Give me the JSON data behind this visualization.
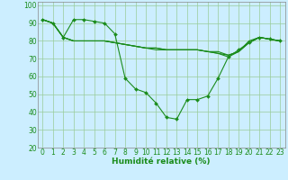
{
  "background_color": "#cceeff",
  "grid_color": "#99cc99",
  "line_color": "#1a8c1a",
  "xlabel": "Humidité relative (%)",
  "xlabel_fontsize": 6.5,
  "tick_fontsize": 5.5,
  "ylim": [
    20,
    102
  ],
  "yticks": [
    20,
    30,
    40,
    50,
    60,
    70,
    80,
    90,
    100
  ],
  "xlim": [
    -0.5,
    23.5
  ],
  "xticks": [
    0,
    1,
    2,
    3,
    4,
    5,
    6,
    7,
    8,
    9,
    10,
    11,
    12,
    13,
    14,
    15,
    16,
    17,
    18,
    19,
    20,
    21,
    22,
    23
  ],
  "series1": [
    92,
    90,
    82,
    92,
    92,
    91,
    90,
    84,
    59,
    53,
    51,
    45,
    37,
    36,
    47,
    47,
    49,
    59,
    71,
    75,
    79,
    82,
    81,
    80
  ],
  "series2": [
    92,
    90,
    82,
    80,
    80,
    80,
    80,
    79,
    78,
    77,
    76,
    76,
    75,
    75,
    75,
    75,
    74,
    73,
    72,
    74,
    80,
    82,
    81,
    80
  ],
  "series3": [
    92,
    90,
    82,
    80,
    80,
    80,
    80,
    79,
    78,
    77,
    76,
    76,
    75,
    75,
    75,
    75,
    74,
    74,
    72,
    74,
    79,
    82,
    81,
    80
  ],
  "series4": [
    92,
    90,
    82,
    80,
    80,
    80,
    80,
    79,
    78,
    77,
    76,
    75,
    75,
    75,
    75,
    75,
    74,
    73,
    71,
    74,
    79,
    82,
    81,
    80
  ]
}
